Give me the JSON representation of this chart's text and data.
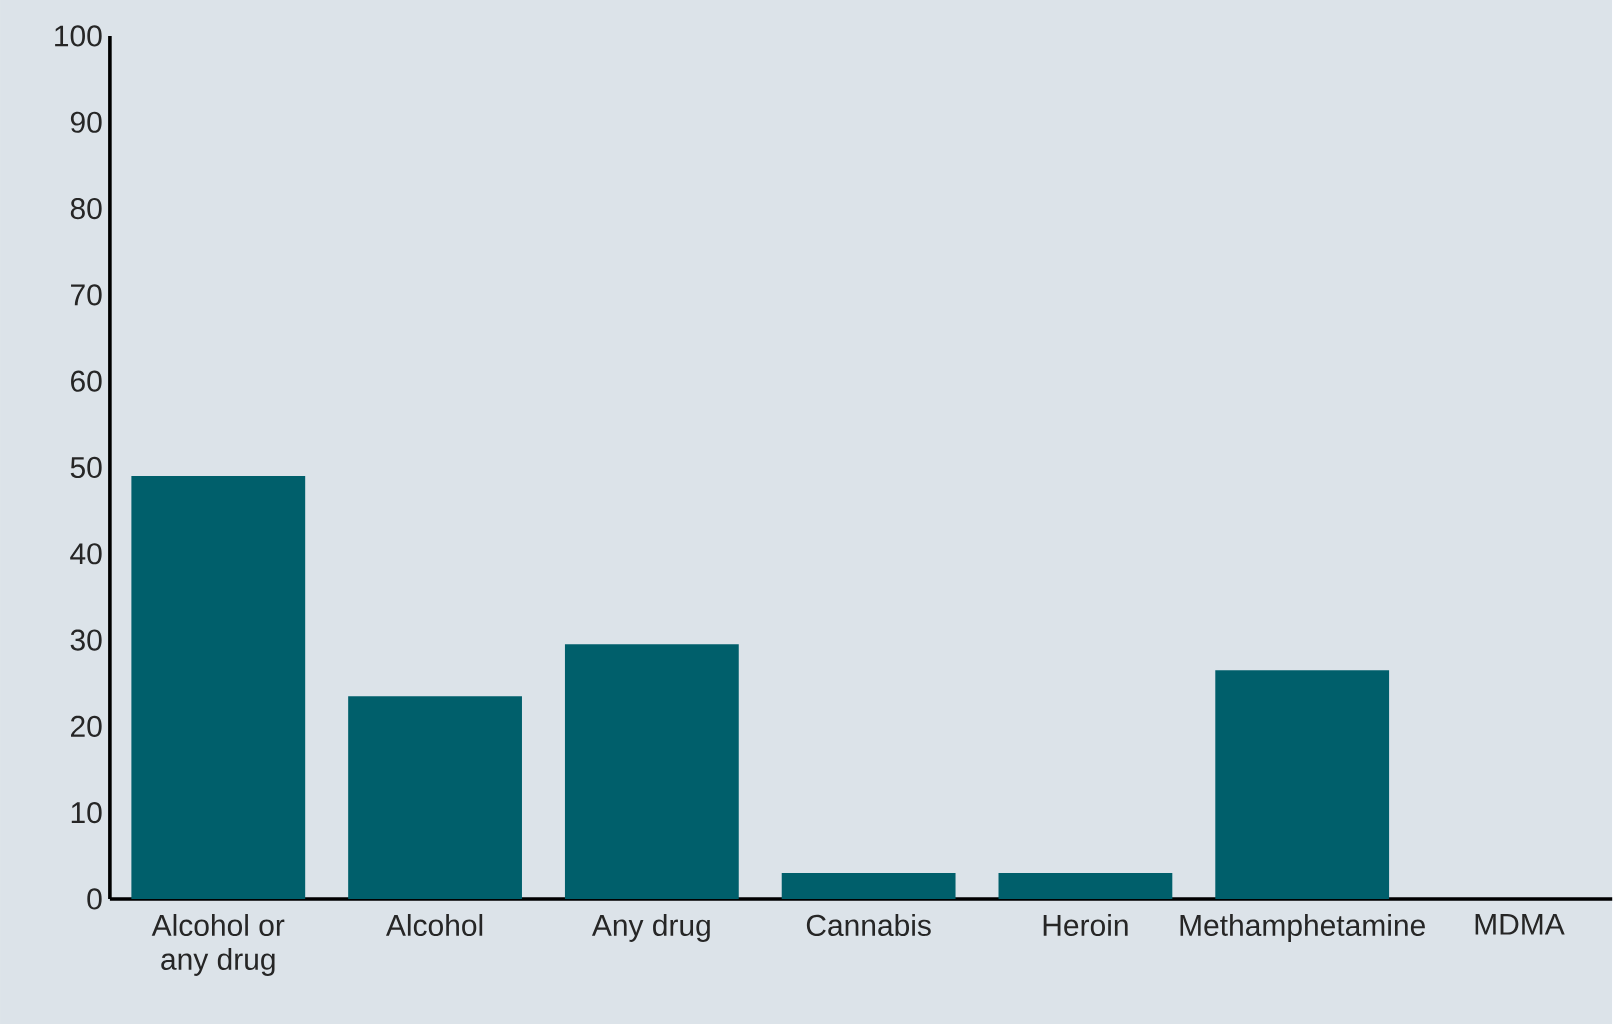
{
  "chart_data": {
    "type": "bar",
    "categories": [
      "Alcohol or any drug",
      "Alcohol",
      "Any drug",
      "Cannabis",
      "Heroin",
      "Methamphetamine",
      "MDMA"
    ],
    "values": [
      49,
      23.5,
      29.5,
      3,
      3,
      26.5,
      0
    ],
    "color": "#005f6b",
    "ylim": [
      0,
      100
    ],
    "yticks": [
      0,
      10,
      20,
      30,
      40,
      50,
      60,
      70,
      80,
      90,
      100
    ]
  }
}
